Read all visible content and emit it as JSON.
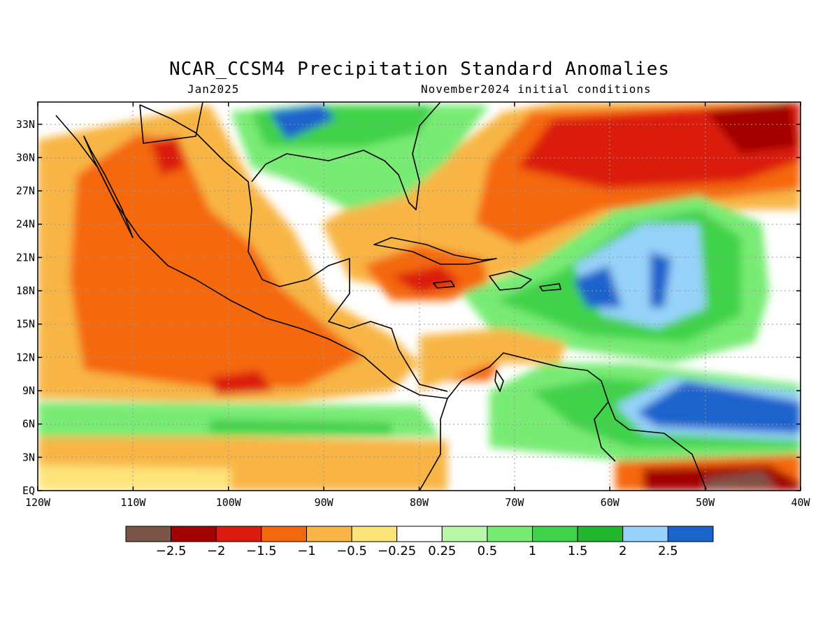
{
  "title": "NCAR_CCSM4 Precipitation Standard Anomalies",
  "subtitle_left": "Jan2025",
  "subtitle_right": "November2024 initial conditions",
  "map": {
    "lon_range": [
      -120,
      -40
    ],
    "lat_range": [
      0,
      35
    ],
    "grid": true,
    "lat_ticks": [
      "EQ",
      "3N",
      "6N",
      "9N",
      "12N",
      "15N",
      "18N",
      "21N",
      "24N",
      "27N",
      "30N",
      "33N"
    ],
    "lon_ticks": [
      "120W",
      "110W",
      "100W",
      "90W",
      "80W",
      "70W",
      "60W",
      "50W",
      "40W"
    ]
  },
  "colorbar": {
    "colors": [
      "#7a5548",
      "#a30000",
      "#db1a10",
      "#f5670c",
      "#f8b545",
      "#fde47a",
      "#ffffff",
      "#b8f7a8",
      "#78eb74",
      "#3fd24a",
      "#22b52e",
      "#96d2fa",
      "#1a64cc"
    ],
    "labels": [
      "−2.5",
      "−2",
      "−1.5",
      "−1",
      "−0.5",
      "−0.25",
      "0.25",
      "0.5",
      "1",
      "1.5",
      "2",
      "2.5"
    ]
  }
}
